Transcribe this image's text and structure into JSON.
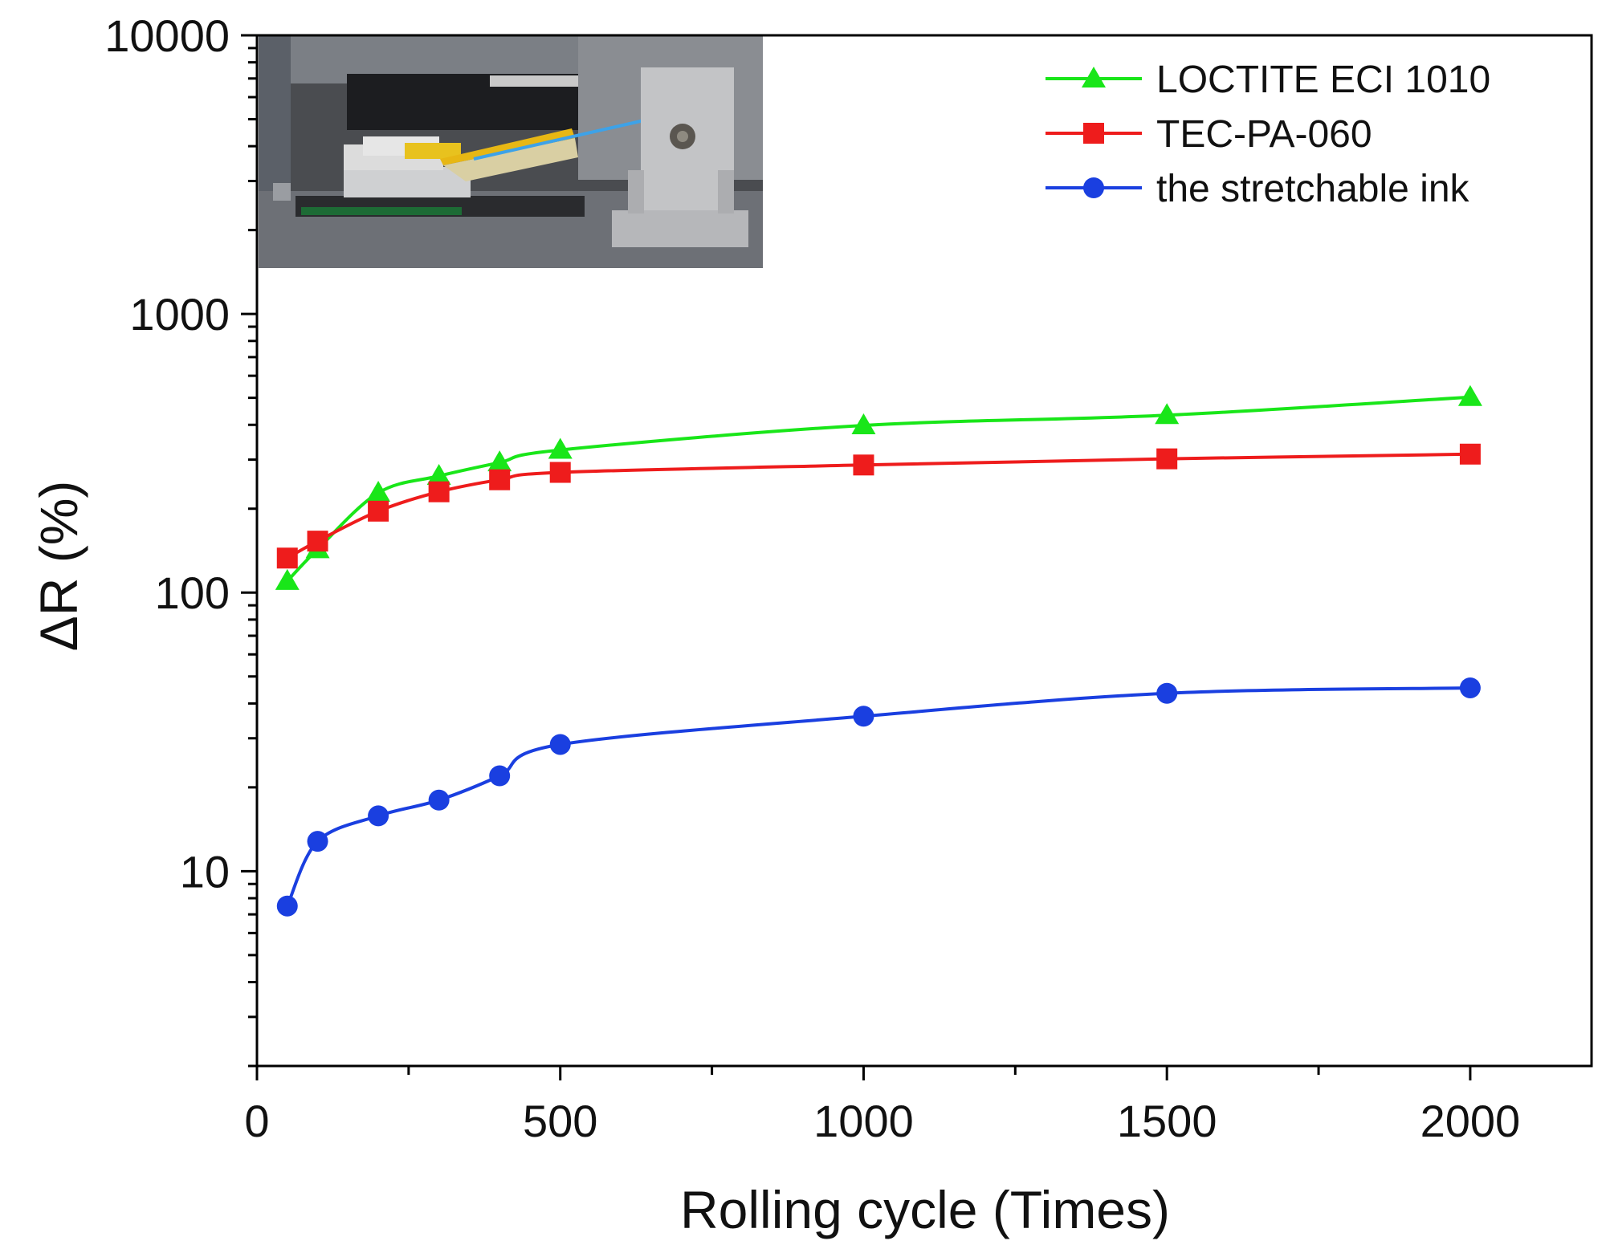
{
  "chart_data": {
    "type": "line",
    "title": "",
    "xlabel": "Rolling cycle (Times)",
    "ylabel": "ΔR (%)",
    "xlim": [
      0,
      2200
    ],
    "ylim": [
      2,
      10000
    ],
    "yscale": "log",
    "x_ticks": [
      0,
      500,
      1000,
      1500,
      2000
    ],
    "x_tick_labels": [
      "0",
      "500",
      "1000",
      "1500",
      "2000"
    ],
    "y_ticks": [
      10,
      100,
      1000,
      10000
    ],
    "y_tick_labels": [
      "10",
      "100",
      "1000",
      "10000"
    ],
    "legend_position": "top-right",
    "inset": "photo of the rolling test apparatus (top-left)",
    "series": [
      {
        "name": "LOCTITE ECI 1010",
        "color": "#19e619",
        "marker": "triangle",
        "x": [
          50,
          100,
          200,
          300,
          400,
          500,
          1000,
          1500,
          2000
        ],
        "values": [
          110,
          143,
          228,
          262,
          293,
          325,
          398,
          433,
          503
        ]
      },
      {
        "name": "TEC-PA-060",
        "color": "#ee1c1c",
        "marker": "square",
        "x": [
          50,
          100,
          200,
          300,
          400,
          500,
          1000,
          1500,
          2000
        ],
        "values": [
          133,
          153,
          196,
          230,
          254,
          270,
          287,
          302,
          314
        ]
      },
      {
        "name": "the stretchable ink",
        "color": "#1a3fe0",
        "marker": "circle",
        "x": [
          50,
          100,
          200,
          300,
          400,
          500,
          1000,
          1500,
          2000
        ],
        "values": [
          7.5,
          12.8,
          15.8,
          18,
          22,
          28.5,
          36,
          43.5,
          45.5
        ]
      }
    ]
  }
}
